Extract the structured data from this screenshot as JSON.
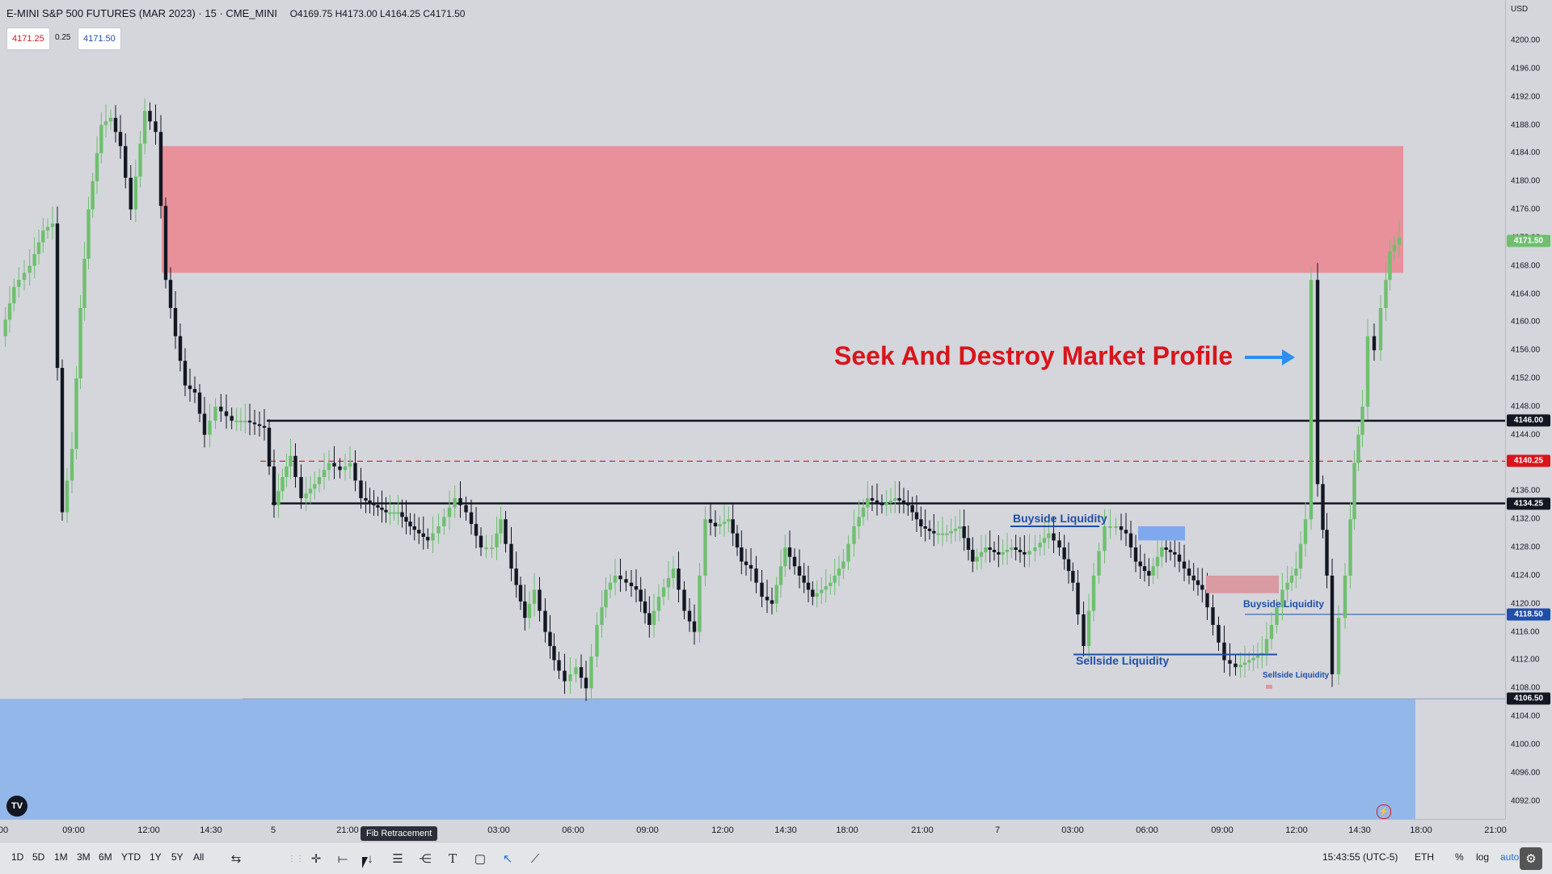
{
  "header": {
    "title": "E-MINI S&P 500 FUTURES (MAR 2023) · 15 · CME_MINI",
    "ohlc": "O4169.75 H4173.00 L4164.25 C4171.50"
  },
  "quote": {
    "bid": "4171.25",
    "spread": "0.25",
    "ask": "4171.50"
  },
  "currency": "USD",
  "colors": {
    "background": "#d4d6dc",
    "supply_zone": "#e8919a",
    "demand_zone": "#93b7e8",
    "bull": "#6fbf6f",
    "bear": "#131722",
    "annotation_red": "#d8151b",
    "annotation_blue": "#1f4fa8",
    "arrow_blue": "#2d8ef0"
  },
  "price_axis": {
    "ticks": [
      "4200.00",
      "4196.00",
      "4192.00",
      "4188.00",
      "4184.00",
      "4180.00",
      "4176.00",
      "4172.00",
      "4168.00",
      "4164.00",
      "4160.00",
      "4156.00",
      "4152.00",
      "4148.00",
      "4144.00",
      "4140.00",
      "4136.00",
      "4132.00",
      "4128.00",
      "4124.00",
      "4120.00",
      "4116.00",
      "4112.00",
      "4108.00",
      "4104.00",
      "4100.00",
      "4096.00",
      "4092.00"
    ],
    "price_labels": [
      {
        "text": "4171.50",
        "bg": "#6fbf6f",
        "fg": "#ffffff",
        "price": 4171.5
      },
      {
        "text": "4146.00",
        "bg": "#131722",
        "fg": "#ffffff",
        "price": 4146.0
      },
      {
        "text": "4140.25",
        "bg": "#d8151b",
        "fg": "#ffffff",
        "price": 4140.25
      },
      {
        "text": "4134.25",
        "bg": "#131722",
        "fg": "#ffffff",
        "price": 4134.25
      },
      {
        "text": "4118.50",
        "bg": "#1f4fa8",
        "fg": "#ffffff",
        "price": 4118.5
      },
      {
        "text": "4106.50",
        "bg": "#131722",
        "fg": "#ffffff",
        "price": 4106.5
      }
    ]
  },
  "time_axis": {
    "ticks": [
      "00",
      "09:00",
      "12:00",
      "14:30",
      "5",
      "21:00",
      "03:00",
      "06:00",
      "09:00",
      "12:00",
      "14:30",
      "18:00",
      "21:00",
      "7",
      "03:00",
      "06:00",
      "09:00",
      "12:00",
      "14:30",
      "18:00",
      "21:00"
    ]
  },
  "annotations": {
    "title": "Seek And Destroy Market Profile",
    "buyside_1": "Buyside Liquidity",
    "sellside_1": "Sellside Liquidity",
    "buyside_2": "Buyside Liquidity",
    "sellside_2": "Sellside Liquidity"
  },
  "levels": [
    {
      "price": 4146.0,
      "style": "solid",
      "color": "#131722"
    },
    {
      "price": 4140.25,
      "style": "dashed",
      "color": "#d8151b"
    },
    {
      "price": 4134.25,
      "style": "solid",
      "color": "#131722"
    },
    {
      "price": 4118.5,
      "style": "thin",
      "color": "#1f4fa8"
    },
    {
      "price": 4106.5,
      "style": "thin",
      "color": "#8aa0c0"
    }
  ],
  "zones": {
    "supply": {
      "top": 4185.0,
      "bottom": 4167.0
    },
    "demand": {
      "top": 4106.5,
      "bottom": 4088.0
    }
  },
  "bottom_bar": {
    "ranges": [
      "1D",
      "5D",
      "1M",
      "3M",
      "6M",
      "YTD",
      "1Y",
      "5Y",
      "All"
    ],
    "tooltip": "Fib Retracement",
    "clock": "15:43:55 (UTC-5)",
    "session": "ETH",
    "percent": "%",
    "log": "log",
    "auto": "auto"
  },
  "icons": [
    "crosshair-icon",
    "horizontal-line-icon",
    "arrow-icon",
    "fib-retracement-icon",
    "pitchfork-icon",
    "text-icon",
    "rectangle-icon",
    "cursor-icon",
    "trendline-icon",
    "compare-icon",
    "settings-icon",
    "tradingview-logo-icon",
    "lightning-icon"
  ]
}
